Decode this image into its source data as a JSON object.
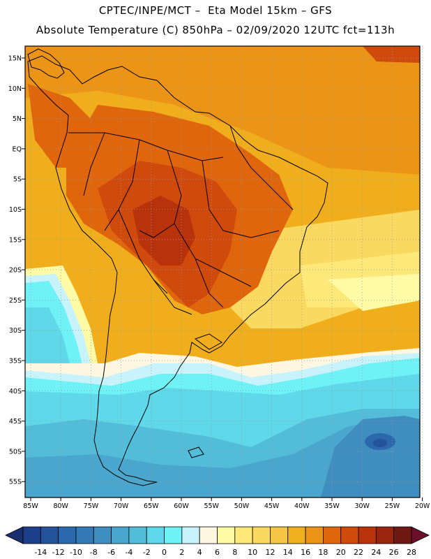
{
  "header": {
    "line1": "CPTEC/INPE/MCT –  Eta Model 15km – GFS",
    "line2": "Absolute Temperature (C) 850hPa – 02/09/2020 12UTC fct=113h"
  },
  "axes": {
    "lat_labels": [
      "15N",
      "10N",
      "5N",
      "EQ",
      "5S",
      "10S",
      "15S",
      "20S",
      "25S",
      "30S",
      "35S",
      "40S",
      "45S",
      "50S",
      "55S"
    ],
    "lon_labels": [
      "85W",
      "80W",
      "75W",
      "70W",
      "65W",
      "60W",
      "55W",
      "50W",
      "45W",
      "40W",
      "35W",
      "30W",
      "25W",
      "20W"
    ]
  },
  "colorbar": {
    "labels": [
      "-14",
      "-12",
      "-10",
      "-8",
      "-6",
      "-4",
      "-2",
      "0",
      "2",
      "4",
      "6",
      "8",
      "10",
      "12",
      "14",
      "16",
      "18",
      "20",
      "22",
      "24",
      "26",
      "28"
    ],
    "colors": [
      "#1d3f8a",
      "#24539b",
      "#2c68ac",
      "#3579b6",
      "#3f8ebf",
      "#4aa6cc",
      "#52bcd9",
      "#5fd8ea",
      "#6ef2f6",
      "#c9f3fa",
      "#fff7e2",
      "#fffaa6",
      "#fde97a",
      "#f9d95f",
      "#f3c745",
      "#f0b120",
      "#ec9416",
      "#e0660d",
      "#cf4a0c",
      "#b8330c",
      "#97260c",
      "#6e1a12"
    ],
    "left_arrow_color": "#1a2f6e",
    "right_arrow_color": "#6a0f2a"
  },
  "colors": {
    "frame": "#000000",
    "ocean_warm": "#f0ae1c",
    "ocean_cool": "#4aa6cc",
    "coast_line": "#000000"
  }
}
